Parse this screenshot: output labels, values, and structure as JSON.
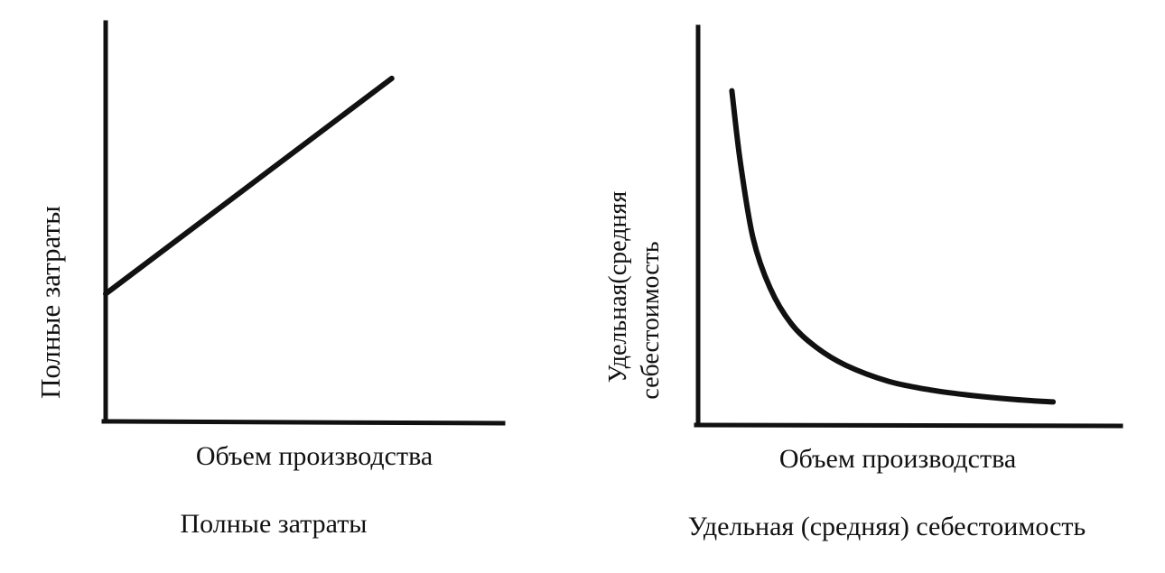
{
  "chart_data": [
    {
      "type": "line",
      "title": "",
      "caption": "Полные затраты",
      "xlabel": "Объем производства",
      "ylabel": "Полные затраты",
      "xlim": [
        0,
        10
      ],
      "ylim": [
        0,
        10
      ],
      "grid": false,
      "series": [
        {
          "x": [
            0,
            7.2
          ],
          "y": [
            3.2,
            8.6
          ]
        }
      ]
    },
    {
      "type": "line",
      "title": "",
      "caption": "Удельная (средняя) себестоимость",
      "xlabel": "Объем производства",
      "ylabel": [
        "Удельная(средняя",
        "себестоимость"
      ],
      "xlim": [
        0,
        10
      ],
      "ylim": [
        0,
        10
      ],
      "grid": false,
      "series": [
        {
          "x": [
            0.8,
            1.0,
            1.3,
            1.7,
            2.2,
            2.8,
            3.5,
            4.5,
            5.5,
            6.5,
            7.5,
            8.4
          ],
          "y": [
            8.4,
            6.6,
            4.7,
            3.45,
            2.55,
            1.95,
            1.5,
            1.1,
            0.88,
            0.74,
            0.64,
            0.58
          ]
        }
      ]
    }
  ]
}
